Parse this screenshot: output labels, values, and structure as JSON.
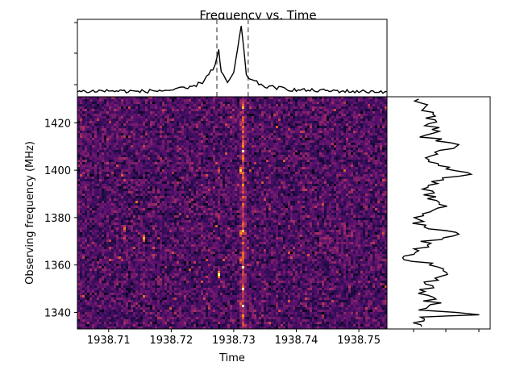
{
  "chart_data": [
    {
      "type": "heatmap",
      "title": "Frequency vs. Time",
      "xlabel": "Time",
      "ylabel": "Observing frequency (MHz)",
      "xlim": [
        1938.705,
        1938.7545
      ],
      "ylim": [
        1333.0,
        1431.0
      ],
      "x_ticks": [
        1938.71,
        1938.72,
        1938.73,
        1938.74,
        1938.75
      ],
      "x_tick_labels": [
        "1938.71",
        "1938.72",
        "1938.73",
        "1938.74",
        "1938.75"
      ],
      "y_ticks": [
        1340,
        1360,
        1380,
        1400,
        1420
      ],
      "y_tick_labels": [
        "1340",
        "1360",
        "1380",
        "1400",
        "1420"
      ],
      "colormap": "inferno",
      "pulse_time": 1938.7312,
      "features": [
        {
          "x": 1938.7312,
          "y": 1399.5,
          "level": 0.95
        },
        {
          "x": 1938.7312,
          "y": 1373.0,
          "level": 0.85
        },
        {
          "x": 1938.7312,
          "y": 1362.0,
          "level": 0.8
        },
        {
          "x": 1938.7312,
          "y": 1344.0,
          "level": 0.75
        },
        {
          "x": 1938.7276,
          "y": 1400.0,
          "level": 0.7
        },
        {
          "x": 1938.7276,
          "y": 1380.0,
          "level": 0.6
        },
        {
          "x": 1938.7276,
          "y": 1356.0,
          "level": 1.0
        },
        {
          "x": 1938.7125,
          "y": 1375.0,
          "level": 0.8
        },
        {
          "x": 1938.7158,
          "y": 1371.0,
          "level": 0.9
        }
      ]
    },
    {
      "type": "line",
      "panel": "time-profile",
      "xlim": [
        1938.705,
        1938.7545
      ],
      "markers": [
        1938.7273,
        1938.7323
      ],
      "x": [
        1938.705,
        1938.71,
        1938.715,
        1938.72,
        1938.723,
        1938.725,
        1938.726,
        1938.727,
        1938.7276,
        1938.728,
        1938.729,
        1938.73,
        1938.7312,
        1938.732,
        1938.733,
        1938.735,
        1938.74,
        1938.745,
        1938.75,
        1938.7545
      ],
      "values": [
        0.05,
        0.06,
        0.05,
        0.07,
        0.1,
        0.18,
        0.3,
        0.4,
        0.62,
        0.3,
        0.18,
        0.3,
        0.95,
        0.28,
        0.2,
        0.12,
        0.07,
        0.06,
        0.05,
        0.05
      ]
    },
    {
      "type": "line",
      "panel": "frequency-profile",
      "ylim": [
        1333.0,
        1431.0
      ],
      "y": [
        1334,
        1338,
        1339,
        1341,
        1344,
        1348,
        1352,
        1356,
        1360,
        1363,
        1366,
        1370,
        1373,
        1376,
        1380,
        1384,
        1388,
        1392,
        1396,
        1399,
        1402,
        1406,
        1410,
        1414,
        1418,
        1422,
        1426,
        1430
      ],
      "values": [
        0.25,
        0.35,
        0.95,
        0.3,
        0.45,
        0.38,
        0.4,
        0.55,
        0.5,
        0.1,
        0.3,
        0.35,
        0.78,
        0.3,
        0.25,
        0.55,
        0.45,
        0.38,
        0.5,
        0.85,
        0.45,
        0.45,
        0.7,
        0.4,
        0.45,
        0.4,
        0.35,
        0.3
      ]
    }
  ]
}
